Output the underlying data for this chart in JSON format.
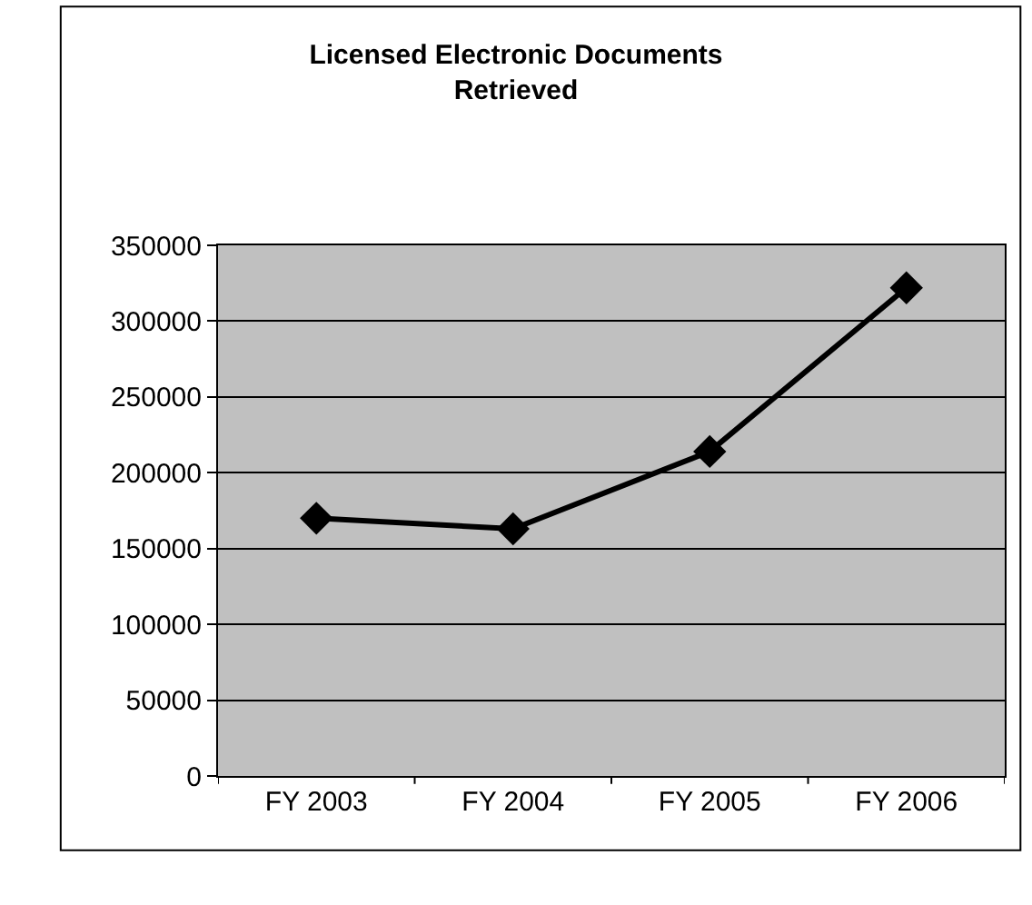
{
  "chart_data": {
    "type": "line",
    "title": "Licensed Electronic Documents Retrieved",
    "categories": [
      "FY 2003",
      "FY 2004",
      "FY 2005",
      "FY 2006"
    ],
    "series": [
      {
        "color": "#000000",
        "values": [
          170000,
          163000,
          214000,
          322000
        ]
      }
    ],
    "ylim": [
      0,
      350000
    ],
    "yticks": [
      0,
      50000,
      100000,
      150000,
      200000,
      250000,
      300000,
      350000
    ],
    "grid": "y",
    "legend": false,
    "marker": "diamond",
    "line_style": "solid"
  }
}
